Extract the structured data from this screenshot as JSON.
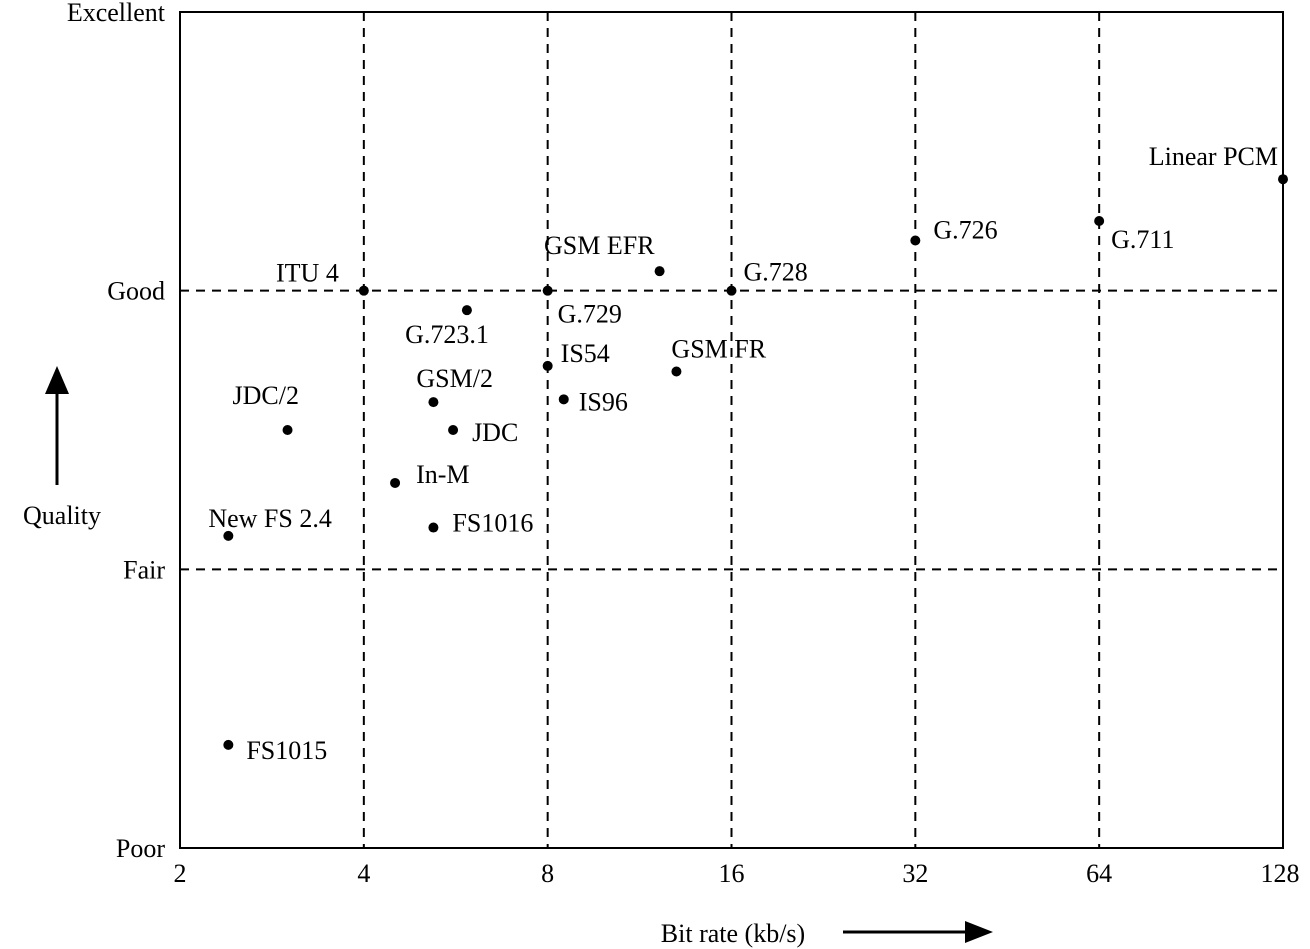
{
  "chart_data": {
    "type": "scatter",
    "title": "",
    "xlabel": "Bit rate (kb/s)",
    "ylabel": "Quality",
    "x_scale": "log2",
    "xlim": [
      2,
      128
    ],
    "x_ticks": [
      "2",
      "4",
      "8",
      "16",
      "32",
      "64",
      "128"
    ],
    "y_categories": [
      "Poor",
      "Fair",
      "Good",
      "Excellent"
    ],
    "ylim": [
      0,
      3
    ],
    "grid": "dashed at x = 4, 8, 16, 32, 64 and at Fair, Good",
    "points": [
      {
        "label": "Linear PCM",
        "x": 128,
        "y": 2.4
      },
      {
        "label": "G.711",
        "x": 64,
        "y": 2.25
      },
      {
        "label": "G.726",
        "x": 32,
        "y": 2.18
      },
      {
        "label": "G.728",
        "x": 16,
        "y": 2.0
      },
      {
        "label": "GSM EFR",
        "x": 12.2,
        "y": 2.07
      },
      {
        "label": "G.729",
        "x": 8,
        "y": 2.0
      },
      {
        "label": "ITU 4",
        "x": 4,
        "y": 2.0
      },
      {
        "label": "G.723.1",
        "x": 5.9,
        "y": 1.93
      },
      {
        "label": "IS54",
        "x": 8,
        "y": 1.73
      },
      {
        "label": "GSM FR",
        "x": 13,
        "y": 1.71
      },
      {
        "label": "IS96",
        "x": 8.5,
        "y": 1.61
      },
      {
        "label": "GSM/2",
        "x": 5.2,
        "y": 1.6
      },
      {
        "label": "JDC/2",
        "x": 3.0,
        "y": 1.5
      },
      {
        "label": "JDC",
        "x": 5.6,
        "y": 1.5
      },
      {
        "label": "In-M",
        "x": 4.5,
        "y": 1.31
      },
      {
        "label": "FS1016",
        "x": 5.2,
        "y": 1.15
      },
      {
        "label": "New FS 2.4",
        "x": 2.4,
        "y": 1.12
      },
      {
        "label": "FS1015",
        "x": 2.4,
        "y": 0.37
      }
    ]
  }
}
